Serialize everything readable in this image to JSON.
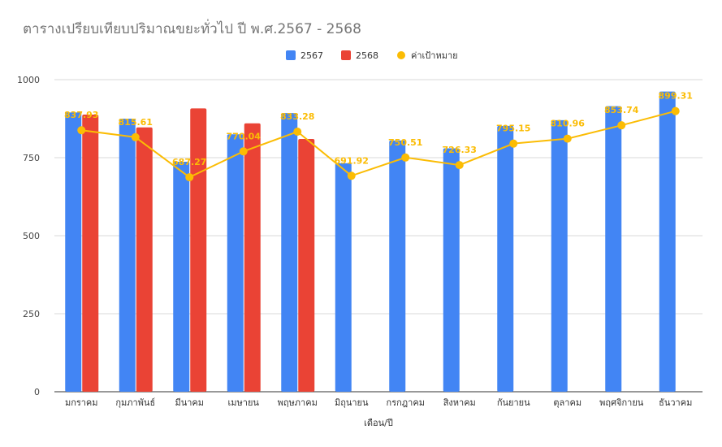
{
  "chart_data": {
    "type": "bar",
    "title": "ตารางเปรียบเทียบปริมาณขยะทั่วไป ปี พ.ศ.2567 - 2568",
    "xlabel": "เดือน/ปี",
    "ylabel": "",
    "ylim": [
      0,
      1000
    ],
    "yticks": [
      0,
      250,
      500,
      750,
      1000
    ],
    "grid": true,
    "legend_position": "top",
    "categories": [
      "มกราคม",
      "กุมภาพันธ์",
      "มีนาคม",
      "เมษายน",
      "พฤษภาคม",
      "มิถุนายน",
      "กรกฎาคม",
      "สิงหาคม",
      "กันยายน",
      "ตุลาคม",
      "พฤศจิกายน",
      "ธันวาคม"
    ],
    "series": [
      {
        "name": "2567",
        "type": "bar",
        "color": "#4285F4",
        "values": [
          895,
          875,
          737,
          825,
          893,
          732,
          805,
          780,
          852,
          870,
          915,
          962
        ]
      },
      {
        "name": "2568",
        "type": "bar",
        "color": "#EA4335",
        "values": [
          888,
          847,
          908,
          860,
          810,
          null,
          null,
          null,
          null,
          null,
          null,
          null
        ]
      },
      {
        "name": "ค่าเป้าหมาย",
        "type": "line",
        "color": "#FBBC04",
        "values": [
          837.93,
          815.61,
          687.27,
          770.04,
          833.28,
          691.92,
          750.51,
          726.33,
          795.15,
          810.96,
          853.74,
          899.31
        ],
        "labels": [
          "837.93",
          "815.61",
          "687.27",
          "770.04",
          "833.28",
          "691.92",
          "750.51",
          "726.33",
          "795.15",
          "810.96",
          "853.74",
          "899.31"
        ]
      }
    ]
  }
}
